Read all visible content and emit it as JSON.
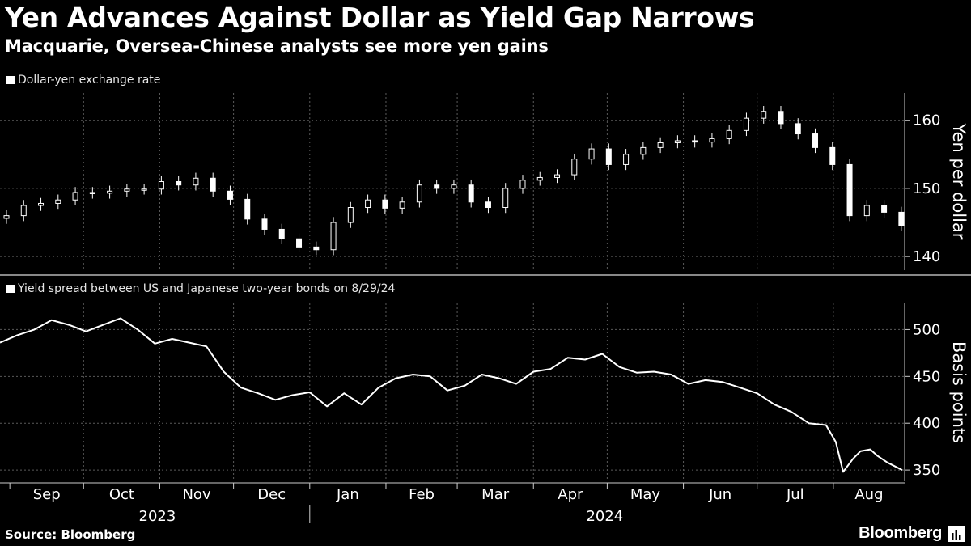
{
  "header": {
    "title": "Yen Advances Against Dollar as Yield Gap Narrows",
    "subtitle": "Macquarie, Oversea-Chinese analysts see more yen gains"
  },
  "footer": {
    "source": "Source: Bloomberg",
    "brand": "Bloomberg"
  },
  "colors": {
    "background": "#000000",
    "line": "#ffffff",
    "grid": "#555555"
  },
  "icons": {
    "brand": "bloomberg-chart-icon"
  },
  "chart_data": [
    {
      "type": "candlestick",
      "legend": "Dollar-yen exchange rate",
      "ylabel": "Yen per dollar",
      "yticks": [
        140,
        150,
        160
      ],
      "ylim": [
        138,
        164
      ],
      "grid": true,
      "axis_side": "right",
      "x_range": [
        "2023-08-28",
        "2024-08-30"
      ],
      "series": [
        {
          "name": "Dollar-yen exchange rate",
          "x": [
            "2023-08-28",
            "2023-09-04",
            "2023-09-11",
            "2023-09-18",
            "2023-09-25",
            "2023-10-02",
            "2023-10-09",
            "2023-10-16",
            "2023-10-23",
            "2023-10-30",
            "2023-11-06",
            "2023-11-13",
            "2023-11-20",
            "2023-11-27",
            "2023-12-04",
            "2023-12-11",
            "2023-12-18",
            "2023-12-25",
            "2024-01-01",
            "2024-01-08",
            "2024-01-15",
            "2024-01-22",
            "2024-01-29",
            "2024-02-05",
            "2024-02-12",
            "2024-02-19",
            "2024-02-26",
            "2024-03-04",
            "2024-03-11",
            "2024-03-18",
            "2024-03-25",
            "2024-04-01",
            "2024-04-08",
            "2024-04-15",
            "2024-04-22",
            "2024-04-29",
            "2024-05-06",
            "2024-05-13",
            "2024-05-20",
            "2024-05-27",
            "2024-06-03",
            "2024-06-10",
            "2024-06-17",
            "2024-06-24",
            "2024-07-01",
            "2024-07-08",
            "2024-07-15",
            "2024-07-22",
            "2024-07-29",
            "2024-08-05",
            "2024-08-12",
            "2024-08-19",
            "2024-08-26"
          ],
          "values": [
            146.0,
            147.5,
            147.8,
            148.3,
            149.4,
            149.3,
            149.6,
            149.9,
            149.9,
            151.0,
            150.5,
            151.5,
            149.6,
            148.4,
            145.5,
            144.0,
            142.6,
            141.4,
            141.0,
            145.0,
            147.2,
            148.3,
            147.1,
            148.0,
            150.5,
            150.0,
            150.5,
            148.0,
            147.2,
            150.0,
            151.2,
            151.6,
            152.0,
            154.3,
            155.8,
            153.5,
            155.0,
            156.0,
            156.7,
            157.0,
            156.8,
            157.3,
            158.5,
            160.3,
            161.3,
            159.5,
            158.0,
            156.0,
            153.5,
            146.0,
            147.5,
            146.5,
            144.5
          ]
        }
      ]
    },
    {
      "type": "line",
      "legend": "Yield spread between US and Japanese two-year bonds on 8/29/24",
      "ylabel": "Basis points",
      "yticks": [
        350,
        400,
        450,
        500
      ],
      "ylim": [
        338,
        528
      ],
      "grid": true,
      "axis_side": "right",
      "x_range": [
        "2023-08-28",
        "2024-08-30"
      ],
      "series": [
        {
          "name": "Yield spread between US and Japanese two-year bonds on 8/29/24",
          "x": [
            "2023-08-28",
            "2023-09-04",
            "2023-09-11",
            "2023-09-18",
            "2023-09-25",
            "2023-10-02",
            "2023-10-09",
            "2023-10-16",
            "2023-10-23",
            "2023-10-30",
            "2023-11-06",
            "2023-11-13",
            "2023-11-20",
            "2023-11-27",
            "2023-12-04",
            "2023-12-11",
            "2023-12-18",
            "2023-12-25",
            "2024-01-01",
            "2024-01-08",
            "2024-01-15",
            "2024-01-22",
            "2024-01-29",
            "2024-02-05",
            "2024-02-12",
            "2024-02-19",
            "2024-02-26",
            "2024-03-04",
            "2024-03-11",
            "2024-03-18",
            "2024-03-25",
            "2024-04-01",
            "2024-04-08",
            "2024-04-15",
            "2024-04-22",
            "2024-04-29",
            "2024-05-06",
            "2024-05-13",
            "2024-05-20",
            "2024-05-27",
            "2024-06-03",
            "2024-06-10",
            "2024-06-17",
            "2024-06-24",
            "2024-07-01",
            "2024-07-08",
            "2024-07-15",
            "2024-07-22",
            "2024-07-29",
            "2024-08-02",
            "2024-08-05",
            "2024-08-09",
            "2024-08-12",
            "2024-08-16",
            "2024-08-19",
            "2024-08-23",
            "2024-08-29"
          ],
          "values": [
            486,
            494,
            500,
            510,
            505,
            498,
            505,
            512,
            500,
            485,
            490,
            486,
            482,
            455,
            438,
            432,
            425,
            430,
            433,
            418,
            432,
            420,
            438,
            448,
            452,
            450,
            435,
            440,
            452,
            448,
            442,
            455,
            458,
            470,
            468,
            474,
            460,
            454,
            455,
            452,
            442,
            446,
            444,
            438,
            432,
            420,
            412,
            400,
            398,
            380,
            348,
            362,
            370,
            372,
            365,
            358,
            350
          ]
        }
      ]
    }
  ],
  "x_axis": {
    "months": [
      "Sep",
      "Oct",
      "Nov",
      "Dec",
      "Jan",
      "Feb",
      "Mar",
      "Apr",
      "May",
      "Jun",
      "Jul",
      "Aug"
    ],
    "years": [
      "2023",
      "2024"
    ]
  }
}
